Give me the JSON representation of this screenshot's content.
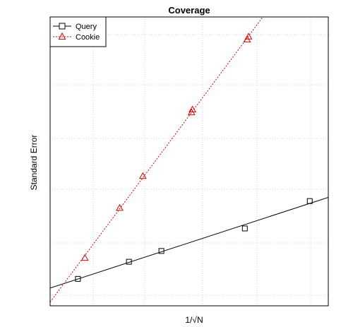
{
  "chart_data": {
    "type": "line",
    "title": "Coverage",
    "xlabel": "1/√N",
    "ylabel": "Standard Error",
    "grid": true,
    "legend_position": "top-left",
    "x_ticks_labeled": false,
    "y_ticks_labeled": false,
    "series": [
      {
        "name": "Query",
        "color": "#000000",
        "line_style": "solid",
        "marker": "square",
        "points": [
          {
            "x": 0.6,
            "y": 0.25
          },
          {
            "x": 1.7,
            "y": 0.6
          },
          {
            "x": 2.4,
            "y": 0.82
          },
          {
            "x": 4.2,
            "y": 1.28
          },
          {
            "x": 5.6,
            "y": 1.84
          }
        ]
      },
      {
        "name": "Cookie",
        "color": "#dd0000",
        "line_style": "dotted",
        "marker": "triangle",
        "points": [
          {
            "x": 0.75,
            "y": 0.68
          },
          {
            "x": 1.5,
            "y": 1.7
          },
          {
            "x": 2.0,
            "y": 2.35
          },
          {
            "x": 3.05,
            "y": 3.65
          },
          {
            "x": 3.07,
            "y": 3.71
          },
          {
            "x": 4.25,
            "y": 5.14
          },
          {
            "x": 4.28,
            "y": 5.2
          }
        ]
      }
    ]
  }
}
